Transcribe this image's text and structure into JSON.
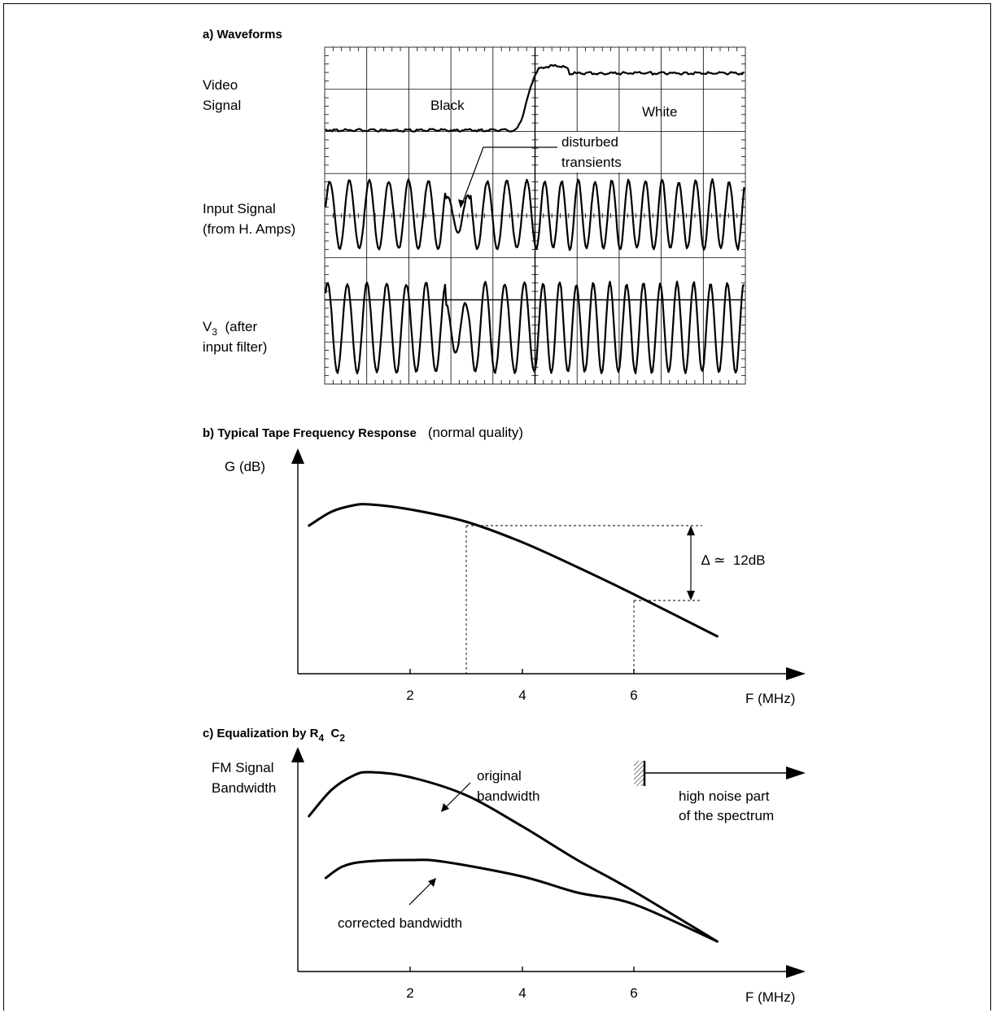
{
  "panel_a": {
    "title": "a) Waveforms",
    "row1_line1": "Video",
    "row1_line2": "Signal",
    "black_label": "Black",
    "white_label": "White",
    "note_line1": "disturbed",
    "note_line2": "transients",
    "row2_line1": "Input Signal",
    "row2_line2": "(from H.  Amps)",
    "row3_line1_main": "V",
    "row3_line1_sub": "3",
    "row3_line1_rest": "  (after",
    "row3_line2": "input filter)"
  },
  "panel_b": {
    "title": "b) Typical Tape Frequency Response",
    "title_note": "(normal quality)",
    "y_axis_label": "G  (dB)",
    "x_axis_label": "F (MHz)",
    "x_ticks": [
      "2",
      "4",
      "6"
    ],
    "delta_label": "∆ ≃  12dB"
  },
  "panel_c": {
    "title_main": "c) Equalization by R",
    "title_sub1": "4",
    "title_mid": "  C",
    "title_sub2": "2",
    "y_axis_line1": "FM Signal",
    "y_axis_line2": "Bandwidth",
    "x_axis_label": "F (MHz)",
    "x_ticks": [
      "2",
      "4",
      "6"
    ],
    "original_line1": "original",
    "original_line2": "bandwidth",
    "corrected_label": "corrected bandwidth",
    "noise_line1": "high noise part",
    "noise_line2": "of the spectrum"
  },
  "chart_data": [
    {
      "type": "line",
      "title": "b) Typical Tape Frequency Response",
      "subtitle": "(normal quality)",
      "xlabel": "F (MHz)",
      "ylabel": "G  (dB)",
      "x_ticks": [
        2,
        4,
        6
      ],
      "series": [
        {
          "x": [
            0.2,
            0.6,
            1.0,
            1.3,
            2.0,
            3.0,
            4.0,
            5.0,
            6.0,
            7.5
          ],
          "y": [
            14.6,
            16.3,
            17.1,
            17.2,
            16.6,
            15.1,
            12.6,
            9.5,
            6.2,
            1.0
          ]
        }
      ],
      "annotation": {
        "from_x": 3,
        "to_x": 6,
        "text": "∆ ≃  12dB"
      }
    },
    {
      "type": "line",
      "title": "c) Equalization by R4  C2",
      "xlabel": "F (MHz)",
      "ylabel": "FM Signal Bandwidth",
      "x_ticks": [
        2,
        4,
        6
      ],
      "series": [
        {
          "name": "original bandwidth",
          "x": [
            0.2,
            0.6,
            1.0,
            1.3,
            2.0,
            3.0,
            4.0,
            5.0,
            6.0,
            7.5
          ],
          "y": [
            7.7,
            9.3,
            10.2,
            10.4,
            10.1,
            9.0,
            7.1,
            5.0,
            3.1,
            0.0
          ]
        },
        {
          "name": "corrected bandwidth",
          "x": [
            0.5,
            0.8,
            1.2,
            2.0,
            2.6,
            4.0,
            5.0,
            6.0,
            7.5
          ],
          "y": [
            3.9,
            4.6,
            4.9,
            5.0,
            4.9,
            4.0,
            3.0,
            2.3,
            0.0
          ]
        }
      ]
    }
  ]
}
